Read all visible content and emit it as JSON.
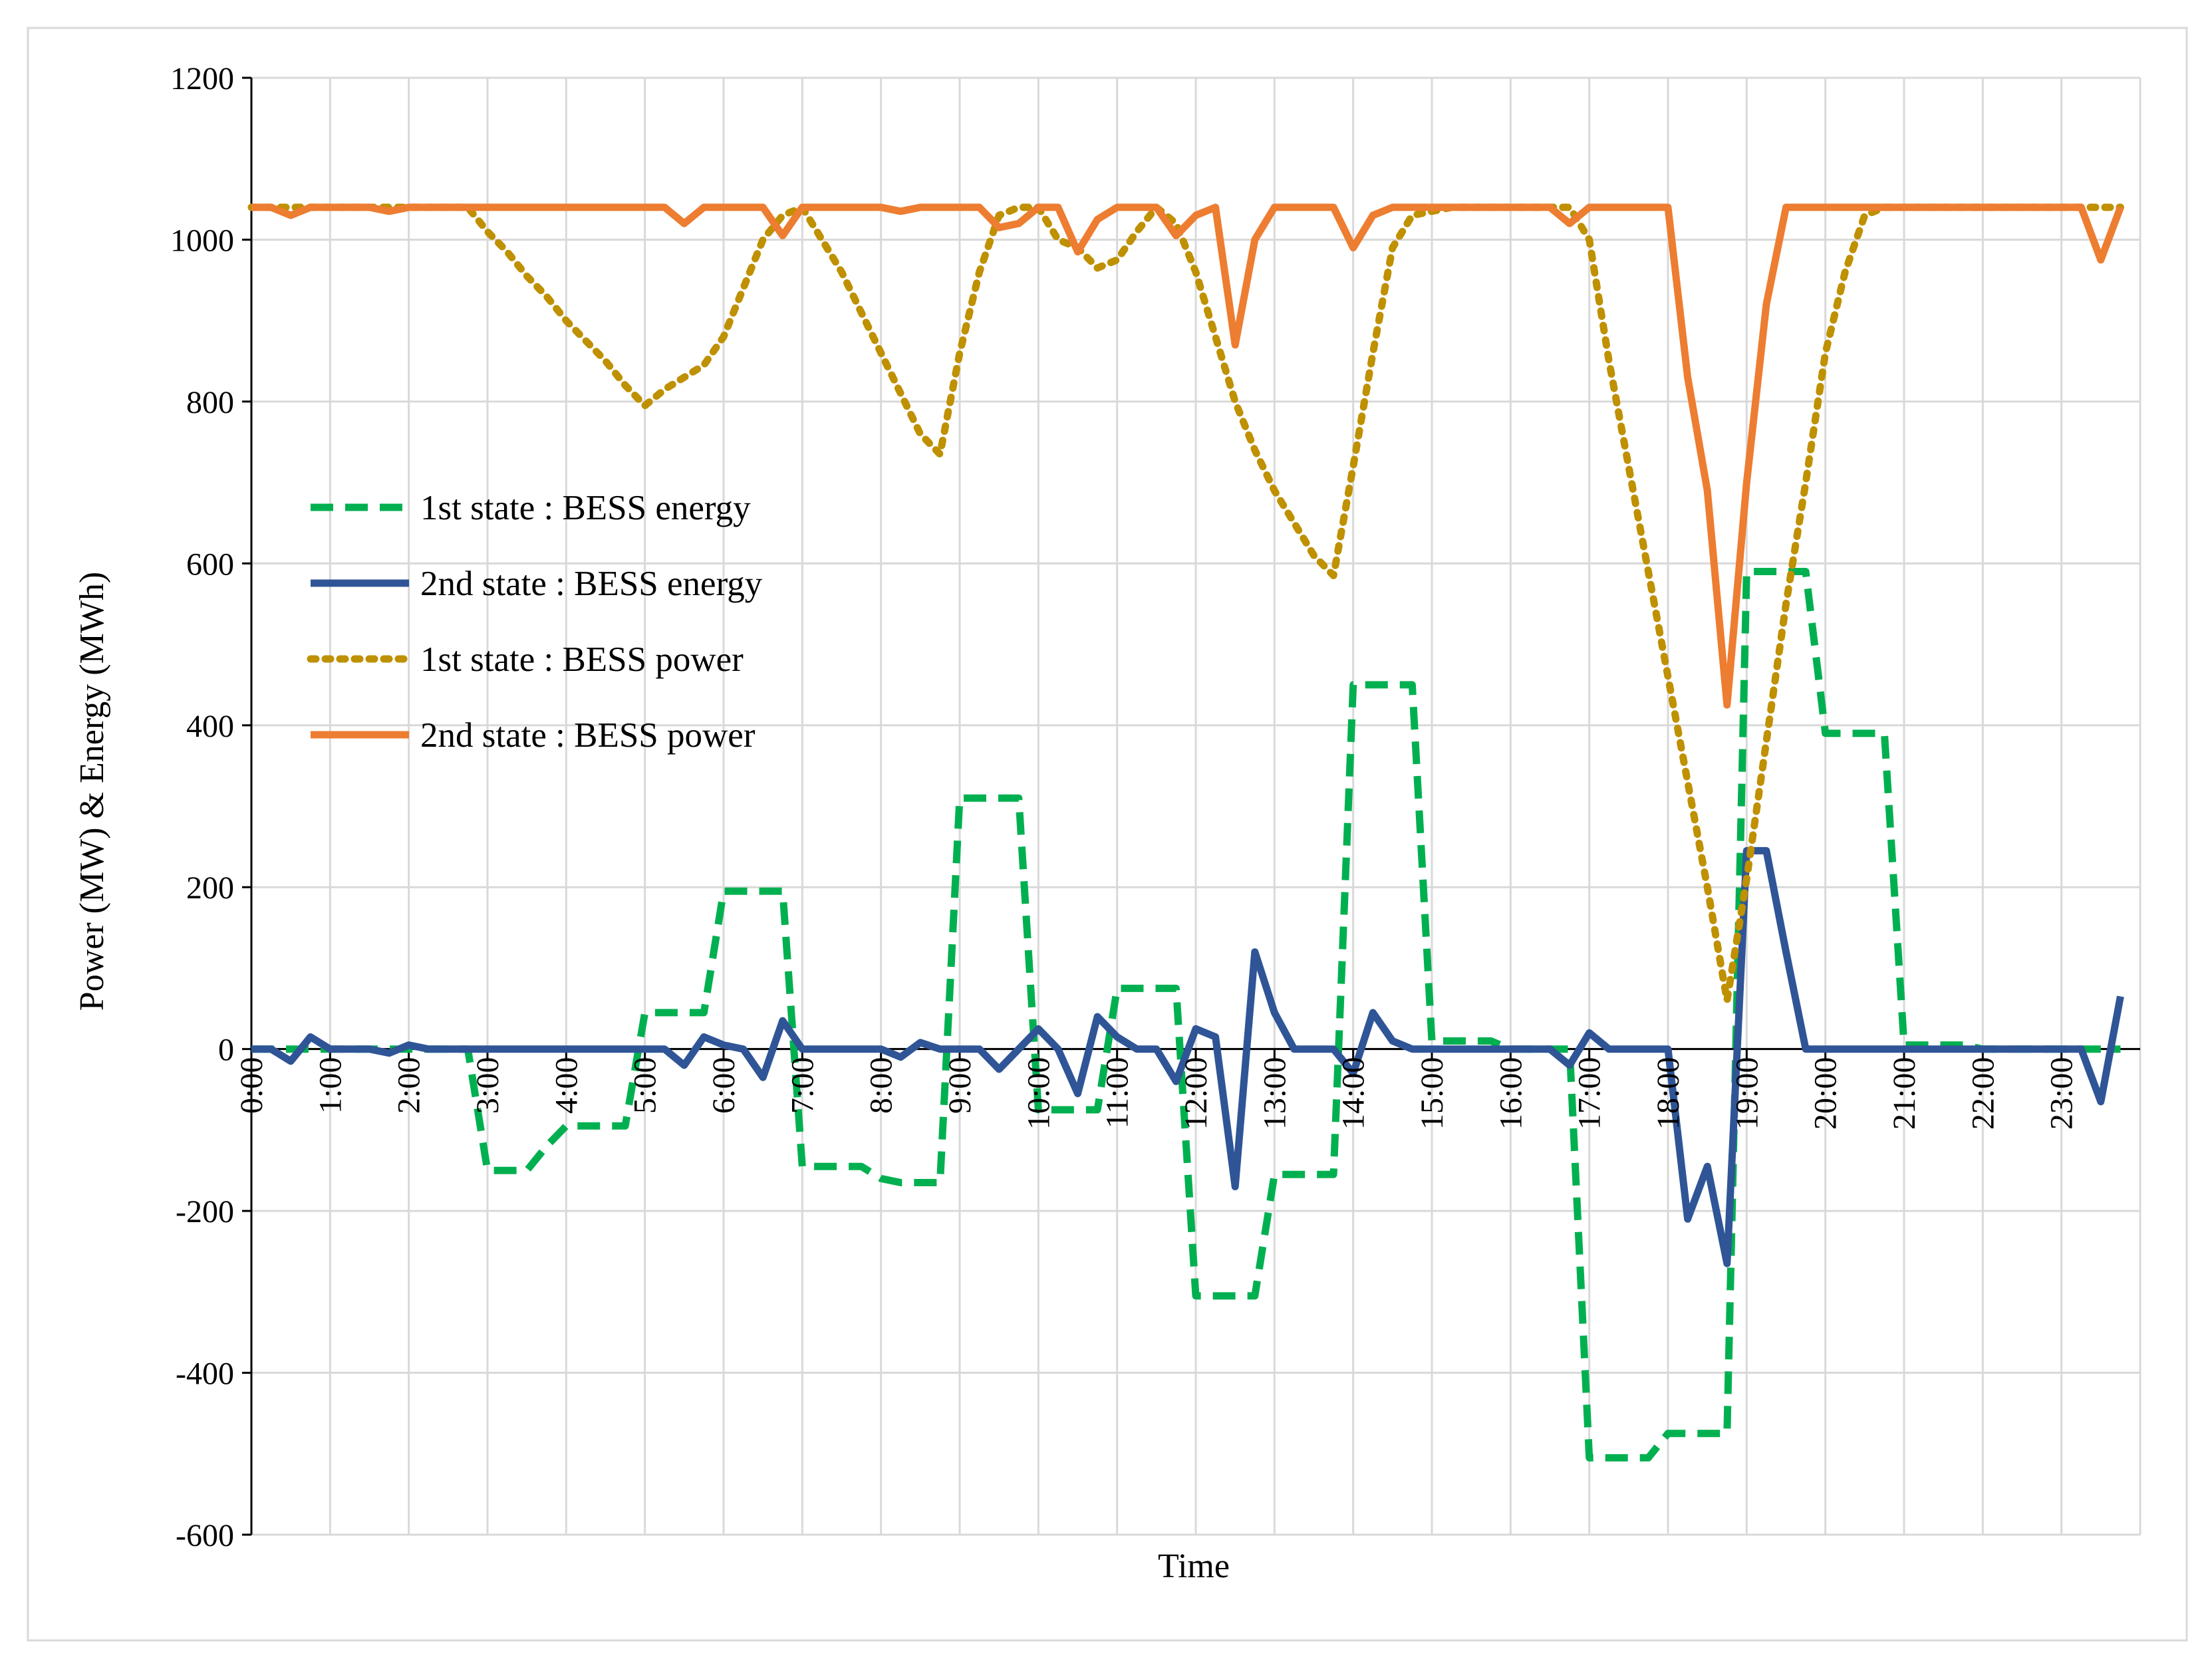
{
  "chart_data": {
    "type": "line",
    "x_label": "Time",
    "y_label": "Power (MW) & Energy (MWh)",
    "categories": [
      "0:00",
      null,
      null,
      null,
      "1:00",
      null,
      null,
      null,
      "2:00",
      null,
      null,
      null,
      "3:00",
      null,
      null,
      null,
      "4:00",
      null,
      null,
      null,
      "5:00",
      null,
      null,
      null,
      "6:00",
      null,
      null,
      null,
      "7:00",
      null,
      null,
      null,
      "8:00",
      null,
      null,
      null,
      "9:00",
      null,
      null,
      null,
      "10:00",
      null,
      null,
      null,
      "11:00",
      null,
      null,
      null,
      "12:00",
      null,
      null,
      null,
      "13:00",
      null,
      null,
      null,
      "14:00",
      null,
      null,
      null,
      "15:00",
      null,
      null,
      null,
      "16:00",
      null,
      null,
      null,
      "17:00",
      null,
      null,
      null,
      "18:00",
      null,
      null,
      null,
      "19:00",
      null,
      null,
      null,
      "20:00",
      null,
      null,
      null,
      "21:00",
      null,
      null,
      null,
      "22:00",
      null,
      null,
      null,
      "23:00",
      null,
      null,
      null
    ],
    "ylim": [
      -600,
      1200
    ],
    "yticks": [
      -600,
      -400,
      -200,
      0,
      200,
      400,
      600,
      800,
      1000,
      1200
    ],
    "grid": true,
    "legend": "upper left",
    "series": [
      {
        "name": "1st state : BESS energy",
        "color": "#00b050",
        "style": "dashed",
        "values": [
          0,
          0,
          0,
          0,
          0,
          0,
          0,
          0,
          0,
          0,
          0,
          0,
          -150,
          -150,
          -150,
          -120,
          -95,
          -95,
          -95,
          -95,
          45,
          45,
          45,
          45,
          195,
          195,
          195,
          195,
          -145,
          -145,
          -145,
          -145,
          -160,
          -165,
          -165,
          -165,
          310,
          310,
          310,
          310,
          -75,
          -75,
          -75,
          -75,
          75,
          75,
          75,
          75,
          -305,
          -305,
          -305,
          -305,
          -155,
          -155,
          -155,
          -155,
          450,
          450,
          450,
          450,
          10,
          10,
          10,
          10,
          0,
          0,
          0,
          0,
          -505,
          -505,
          -505,
          -505,
          -475,
          -475,
          -475,
          -475,
          590,
          590,
          590,
          590,
          390,
          390,
          390,
          390,
          5,
          5,
          5,
          5,
          0,
          0,
          0,
          0,
          0,
          0,
          0,
          0
        ]
      },
      {
        "name": "2nd state : BESS energy",
        "color": "#2f5597",
        "style": "solid",
        "values": [
          0,
          0,
          -15,
          15,
          0,
          0,
          0,
          -5,
          5,
          0,
          0,
          0,
          0,
          0,
          0,
          0,
          0,
          0,
          0,
          0,
          0,
          0,
          -20,
          15,
          5,
          0,
          -35,
          35,
          0,
          0,
          0,
          0,
          0,
          -10,
          8,
          0,
          0,
          0,
          -25,
          0,
          25,
          0,
          -55,
          40,
          15,
          0,
          0,
          -40,
          25,
          15,
          -170,
          120,
          45,
          0,
          0,
          0,
          -30,
          45,
          10,
          0,
          0,
          0,
          0,
          0,
          0,
          0,
          0,
          -20,
          20,
          0,
          0,
          0,
          0,
          -210,
          -145,
          -265,
          245,
          245,
          120,
          0,
          0,
          0,
          0,
          0,
          0,
          0,
          0,
          0,
          0,
          0,
          0,
          0,
          0,
          0,
          -65,
          65
        ]
      },
      {
        "name": "1st state : BESS power",
        "color": "#bf9000",
        "style": "dotted",
        "values": [
          1040,
          1040,
          1040,
          1040,
          1040,
          1040,
          1040,
          1040,
          1040,
          1040,
          1040,
          1040,
          1010,
          985,
          955,
          930,
          900,
          875,
          850,
          820,
          795,
          815,
          830,
          845,
          880,
          940,
          1000,
          1030,
          1040,
          1000,
          960,
          910,
          860,
          810,
          760,
          735,
          860,
          960,
          1030,
          1040,
          1040,
          1000,
          990,
          965,
          975,
          1010,
          1040,
          1020,
          960,
          880,
          800,
          740,
          690,
          650,
          610,
          585,
          720,
          860,
          990,
          1030,
          1035,
          1040,
          1040,
          1040,
          1040,
          1040,
          1040,
          1040,
          1000,
          850,
          720,
          590,
          460,
          330,
          200,
          60,
          210,
          380,
          550,
          700,
          860,
          960,
          1030,
          1040,
          1040,
          1040,
          1040,
          1040,
          1040,
          1040,
          1040,
          1040,
          1040,
          1040,
          1040,
          1040
        ]
      },
      {
        "name": "2nd state : BESS power",
        "color": "#ed7d31",
        "style": "solid",
        "values": [
          1040,
          1040,
          1030,
          1040,
          1040,
          1040,
          1040,
          1035,
          1040,
          1040,
          1040,
          1040,
          1040,
          1040,
          1040,
          1040,
          1040,
          1040,
          1040,
          1040,
          1040,
          1040,
          1020,
          1040,
          1040,
          1040,
          1040,
          1005,
          1040,
          1040,
          1040,
          1040,
          1040,
          1035,
          1040,
          1040,
          1040,
          1040,
          1015,
          1020,
          1040,
          1040,
          985,
          1025,
          1040,
          1040,
          1040,
          1005,
          1030,
          1040,
          870,
          1000,
          1040,
          1040,
          1040,
          1040,
          990,
          1030,
          1040,
          1040,
          1040,
          1040,
          1040,
          1040,
          1040,
          1040,
          1040,
          1020,
          1040,
          1040,
          1040,
          1040,
          1040,
          830,
          690,
          425,
          700,
          920,
          1040,
          1040,
          1040,
          1040,
          1040,
          1040,
          1040,
          1040,
          1040,
          1040,
          1040,
          1040,
          1040,
          1040,
          1040,
          1040,
          975,
          1040
        ]
      }
    ]
  }
}
